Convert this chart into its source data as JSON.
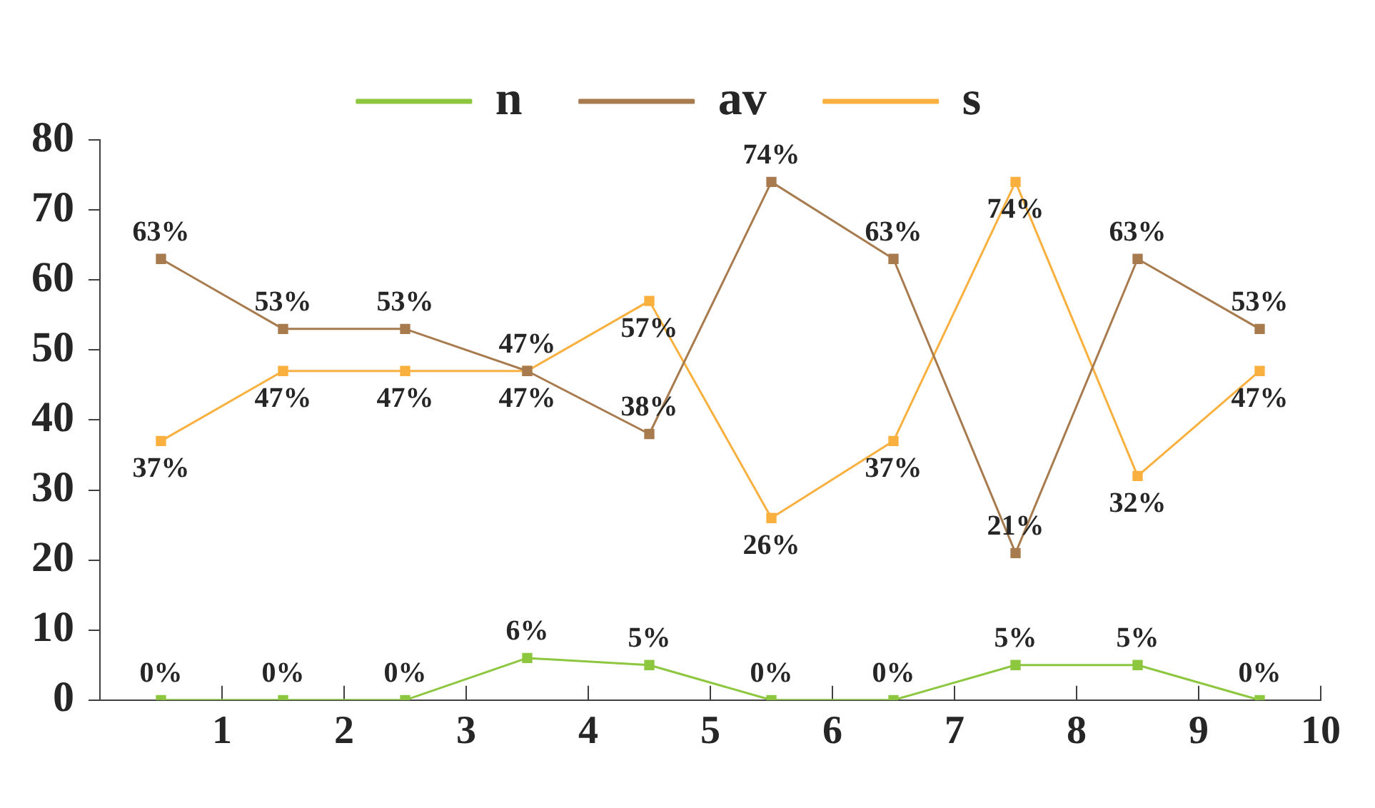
{
  "chart_data": {
    "type": "line",
    "x": [
      0.5,
      1.5,
      2.5,
      3.5,
      4.5,
      5.5,
      6.5,
      7.5,
      8.5,
      9.5
    ],
    "xlim": [
      0,
      10
    ],
    "xticks": [
      1,
      2,
      3,
      4,
      5,
      6,
      7,
      8,
      9,
      10
    ],
    "ylim": [
      0,
      80
    ],
    "yticks": [
      0,
      10,
      20,
      30,
      40,
      50,
      60,
      70,
      80
    ],
    "grid": false,
    "legend": "top",
    "marker": "square",
    "line_style": "solid",
    "series": [
      {
        "name": "n",
        "color": "#8dc63f",
        "values": [
          0,
          0,
          0,
          6,
          5,
          0,
          0,
          5,
          5,
          0
        ],
        "value_labels": [
          "0%",
          "0%",
          "0%",
          "6%",
          "5%",
          "0%",
          "0%",
          "5%",
          "5%",
          "0%"
        ]
      },
      {
        "name": "av",
        "color": "#a87b4f",
        "values": [
          63,
          53,
          53,
          47,
          38,
          74,
          63,
          21,
          63,
          53
        ],
        "value_labels": [
          "63%",
          "53%",
          "53%",
          "47%",
          "38%",
          "74%",
          "63%",
          "21%",
          "63%",
          "53%"
        ]
      },
      {
        "name": "s",
        "color": "#f9b03f",
        "values": [
          37,
          47,
          47,
          47,
          57,
          26,
          37,
          74,
          32,
          47
        ],
        "value_labels": [
          "37%",
          "47%",
          "47%",
          "47%",
          "57%",
          "26%",
          "37%",
          "74%",
          "32%",
          "47%"
        ]
      }
    ]
  }
}
